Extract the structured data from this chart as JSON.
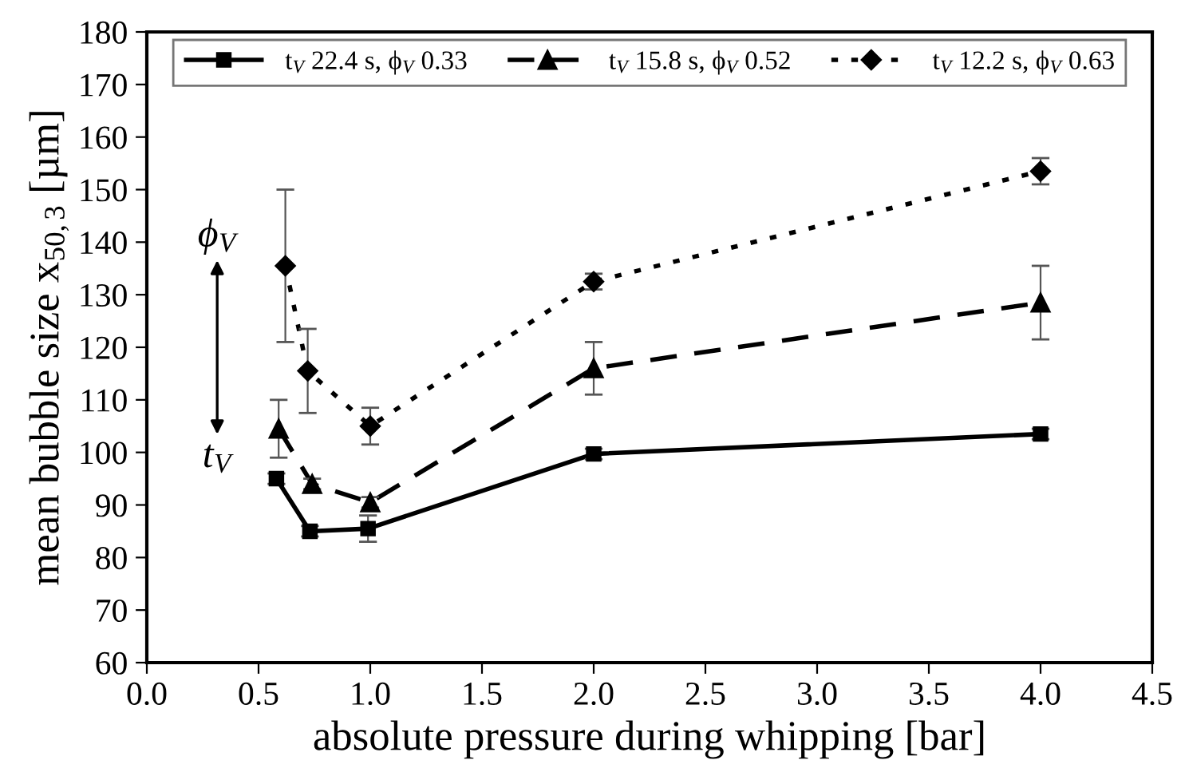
{
  "chart_data": {
    "type": "line",
    "xlabel": "absolute pressure during whipping [bar]",
    "ylabel": "mean bubble size x$_{50,3}$ [µm]",
    "xlim": [
      0.0,
      4.5
    ],
    "xticks": [
      {
        "value": 0,
        "label": "0.0"
      },
      0.5,
      {
        "value": 1,
        "label": "1.0"
      },
      1.5,
      {
        "value": 2,
        "label": "2.0"
      },
      2.5,
      {
        "value": 3,
        "label": "3.0"
      },
      3.5,
      {
        "value": 4,
        "label": "4.0"
      },
      4.5
    ],
    "ylim": [
      60,
      180
    ],
    "yticks": [
      60,
      70,
      80,
      90,
      100,
      110,
      120,
      130,
      140,
      150,
      160,
      170,
      180
    ],
    "grid": false,
    "legend": "top",
    "series": [
      {
        "name": "t$_{V}$ 22.4 s, ϕ$_{V}$ 0.33",
        "color": "#000000",
        "marker": "square",
        "line_style": "solid",
        "x": [
          0.58,
          0.73,
          0.99,
          2.0,
          4.0
        ],
        "values": [
          95,
          85,
          85.5,
          99.7,
          103.5
        ],
        "errors": [
          1,
          1,
          2.5,
          1,
          1
        ]
      },
      {
        "name": "t$_{V}$ 15.8 s, ϕ$_{V}$ 0.52",
        "color": "#000000",
        "marker": "triangle",
        "line_style": "dashed",
        "x": [
          0.59,
          0.74,
          1.0,
          2.0,
          4.0
        ],
        "values": [
          104.5,
          94,
          90.5,
          116,
          128.5
        ],
        "errors": [
          5.5,
          1,
          1,
          5,
          7
        ]
      },
      {
        "name": "t$_{V}$ 12.2 s, ϕ$_{V}$ 0.63",
        "color": "#000000",
        "marker": "diamond",
        "line_style": "dotted",
        "x": [
          0.62,
          0.72,
          1.0,
          2.0,
          4.0
        ],
        "values": [
          135.5,
          115.5,
          105,
          132.5,
          153.5
        ],
        "errors": [
          14.5,
          8,
          3.5,
          1.5,
          2.5
        ]
      }
    ],
    "annotations": [
      "ϕ$_{V}$",
      "t$_{V}$"
    ]
  }
}
